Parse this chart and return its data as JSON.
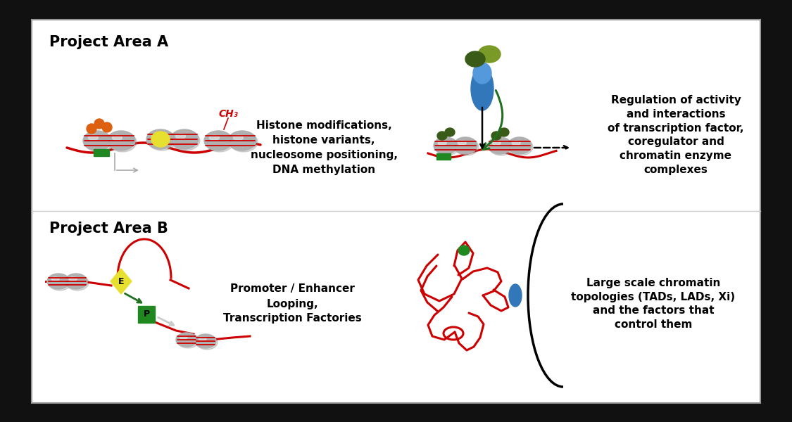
{
  "bg_color": "#111111",
  "panel_bg": "#ffffff",
  "panel_border": "#999999",
  "title_a": "Project Area A",
  "title_b": "Project Area B",
  "text_a1": "Histone modifications,\nhistone variants,\nnucleosome positioning,\nDNA methylation",
  "text_a2": "Regulation of activity\nand interactions\nof transcription factor,\ncoregulator and\nchromatin enzyme\ncomplexes",
  "text_b1": "Promoter / Enhancer\nLooping,\nTranscription Factories",
  "text_b2": "Large scale chromatin\ntopologies (TADs, LADs, Xi)\nand the factors that\ncontrol them",
  "ch3_text": "CH₃",
  "e_label": "E",
  "p_label": "P",
  "nuc_color": "#b0b0b0",
  "nuc_highlight": "#e8e8e8",
  "nuc_stripe": "#cc0000",
  "orange_mod": "#dd6010",
  "yellow_mod": "#e8e030",
  "green_box": "#208820",
  "green_arrow": "#207020",
  "blue_tf": "#3377bb",
  "dark_green_tf": "#3a5a18",
  "olive_tf": "#7a9a28",
  "dna_color": "#cc0000",
  "title_fontsize": 15,
  "body_fontsize": 11,
  "ch3_fontsize": 10
}
